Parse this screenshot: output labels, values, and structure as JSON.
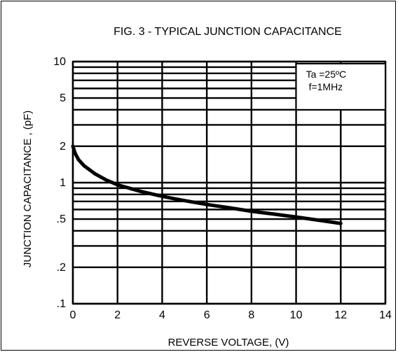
{
  "chart_data": {
    "type": "line",
    "title": "FIG. 3 - TYPICAL JUNCTION CAPACITANCE",
    "xlabel": "REVERSE  VOLTAGE, (V)",
    "ylabel": "JUNCTION CAPACITANCE ,  (pF)",
    "xlim": [
      0,
      14
    ],
    "ylim": [
      0.1,
      10
    ],
    "y_scale": "log",
    "grid": true,
    "x_ticks": [
      0,
      2,
      4,
      6,
      8,
      10,
      12,
      14
    ],
    "x_tick_labels": [
      "0",
      "2",
      "4",
      "6",
      "8",
      "10",
      "12",
      "14"
    ],
    "y_ticks": [
      0.1,
      0.2,
      0.5,
      1,
      2,
      5,
      10
    ],
    "y_tick_labels": [
      ".1",
      ".2",
      ".5",
      "1",
      "2",
      "5",
      "10"
    ],
    "y_gridlines": [
      0.1,
      0.2,
      0.3,
      0.4,
      0.5,
      0.6,
      0.7,
      0.8,
      0.9,
      1,
      2,
      3,
      4,
      5,
      6,
      7,
      8,
      9,
      10
    ],
    "annotation": [
      "Ta =25ºC",
      "f=1MHz"
    ],
    "annotation_position": "top-right",
    "series": [
      {
        "x": [
          0,
          0.1,
          0.25,
          0.5,
          1,
          1.5,
          2,
          3,
          4,
          5,
          6,
          7,
          8,
          9,
          10,
          11,
          12
        ],
        "values": [
          2.0,
          1.75,
          1.55,
          1.38,
          1.18,
          1.05,
          0.96,
          0.85,
          0.77,
          0.71,
          0.66,
          0.62,
          0.58,
          0.55,
          0.52,
          0.49,
          0.46
        ]
      }
    ]
  }
}
